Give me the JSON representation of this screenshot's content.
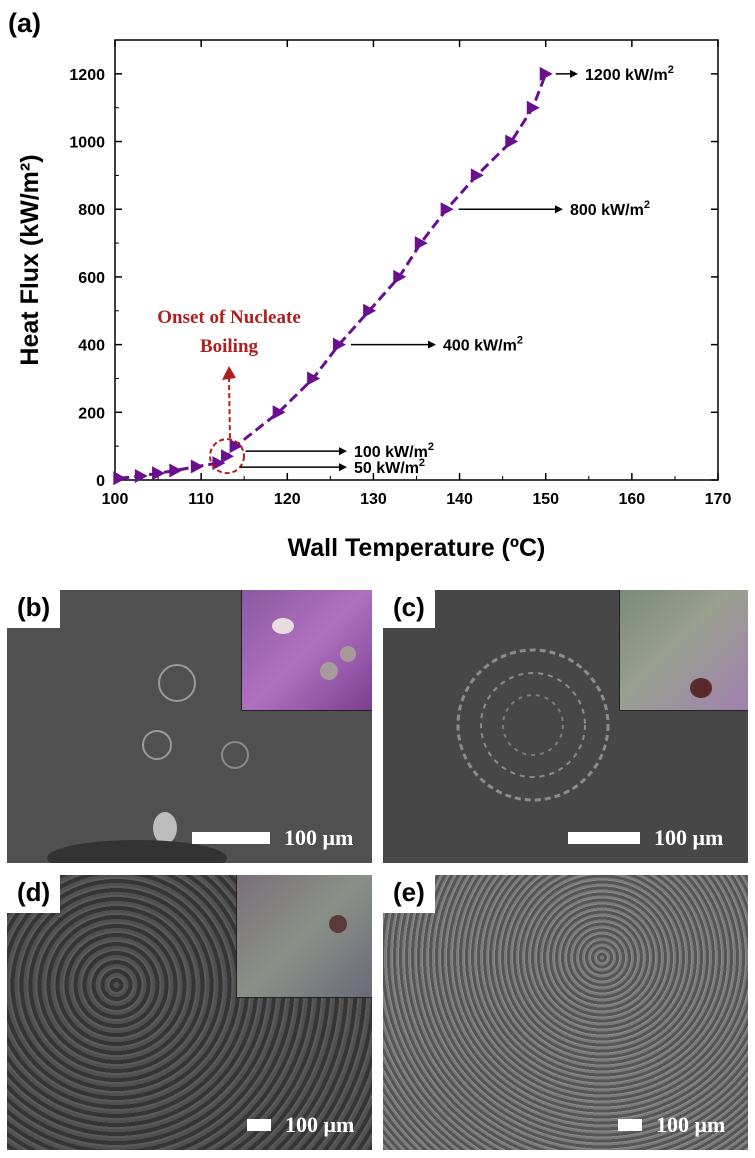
{
  "chart_data": {
    "type": "line",
    "panel_label": "(a)",
    "xlabel": "Wall Temperature (ºC)",
    "ylabel": "Heat Flux (kW/m²)",
    "xlim": [
      100,
      170
    ],
    "ylim": [
      0,
      1300
    ],
    "xticks": [
      100,
      110,
      120,
      130,
      140,
      150,
      160,
      170
    ],
    "yticks": [
      0,
      200,
      400,
      600,
      800,
      1000,
      1200
    ],
    "x": [
      100.5,
      103,
      105,
      107,
      109.5,
      112,
      113,
      114,
      119,
      123,
      126,
      129.5,
      133,
      135.5,
      138.5,
      142,
      146,
      148.5,
      150
    ],
    "y": [
      5,
      12,
      20,
      28,
      40,
      50,
      70,
      100,
      200,
      300,
      400,
      500,
      600,
      700,
      800,
      900,
      1000,
      1100,
      1200
    ],
    "series_color": "#6a0f8e",
    "grid": false,
    "annotations": [
      {
        "text": "Onset of Nucleate",
        "color": "#b01e1e"
      },
      {
        "text": "Boiling",
        "color": "#b01e1e"
      },
      {
        "text": "1200 kW/m",
        "sup": "2",
        "x": 150,
        "y": 1200
      },
      {
        "text": "800 kW/m",
        "sup": "2",
        "x": 138.5,
        "y": 800
      },
      {
        "text": "400 kW/m",
        "sup": "2",
        "x": 126,
        "y": 400
      },
      {
        "text": "100 kW/m",
        "sup": "2",
        "x": 114,
        "y": 100
      },
      {
        "text": "50 kW/m",
        "sup": "2",
        "x": 112,
        "y": 50
      }
    ]
  },
  "panels": [
    {
      "label": "(b)",
      "scale": "100 μm"
    },
    {
      "label": "(c)",
      "scale": "100 μm"
    },
    {
      "label": "(d)",
      "scale": "100 μm"
    },
    {
      "label": "(e)",
      "scale": "100 μm"
    }
  ]
}
